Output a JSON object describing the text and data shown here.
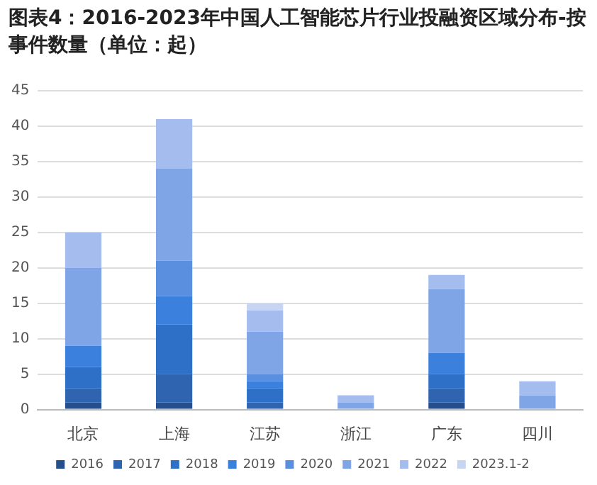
{
  "chart_data": {
    "type": "bar",
    "title": "图表4：2016-2023年中国人工智能芯片行业投融资区域分布-按事件数量（单位：起）",
    "categories": [
      "北京",
      "上海",
      "江苏",
      "浙江",
      "广东",
      "四川"
    ],
    "stacked": true,
    "series": [
      {
        "name": "2016",
        "color": "#254f8c",
        "values": [
          1,
          1,
          0,
          0,
          1,
          0
        ]
      },
      {
        "name": "2017",
        "color": "#2f64b0",
        "values": [
          2,
          4,
          1,
          0,
          2,
          0
        ]
      },
      {
        "name": "2018",
        "color": "#2e6fc8",
        "values": [
          3,
          7,
          2,
          0,
          2,
          0
        ]
      },
      {
        "name": "2019",
        "color": "#3a80dc",
        "values": [
          3,
          4,
          1,
          0,
          3,
          0
        ]
      },
      {
        "name": "2020",
        "color": "#5a8fe0",
        "values": [
          0,
          5,
          1,
          0,
          0,
          0
        ]
      },
      {
        "name": "2021",
        "color": "#80a5e6",
        "values": [
          11,
          13,
          6,
          1,
          9,
          2
        ]
      },
      {
        "name": "2022",
        "color": "#a4bdee",
        "values": [
          5,
          7,
          3,
          1,
          2,
          2
        ]
      },
      {
        "name": "2023.1-2",
        "color": "#c8d5f2",
        "values": [
          0,
          0,
          1,
          0,
          0,
          0
        ]
      }
    ],
    "ylim": [
      0,
      45
    ],
    "yticks": [
      0,
      5,
      10,
      15,
      20,
      25,
      30,
      35,
      40,
      45
    ],
    "grid": "y",
    "legend": "bottom"
  }
}
